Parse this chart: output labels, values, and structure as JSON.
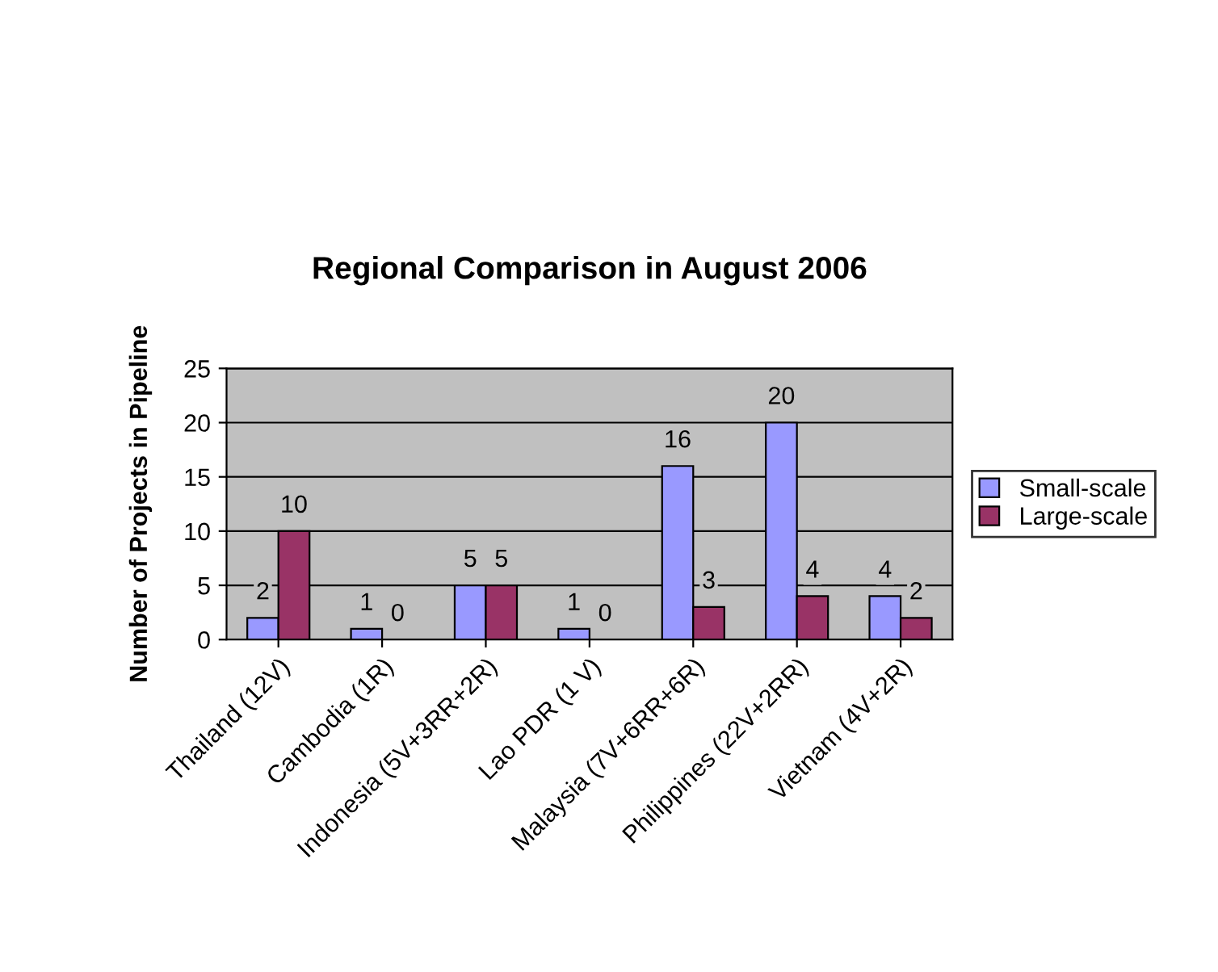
{
  "chart_data": {
    "type": "bar",
    "title": "Regional Comparison in August 2006",
    "ylabel": "Number of Projects in Pipeline",
    "categories": [
      "Thailand (12V)",
      "Cambodia (1R)",
      "Indonesia (5V+3RR+2R)",
      "Lao PDR (1 V)",
      "Malaysia (7V+6RR+6R)",
      "Philippines (22V+2RR)",
      "Vietnam (4V+2R)"
    ],
    "series": [
      {
        "name": "Small-scale",
        "color": "#9999ff",
        "values": [
          2,
          1,
          5,
          1,
          16,
          20,
          4
        ]
      },
      {
        "name": "Large-scale",
        "color": "#993366",
        "values": [
          10,
          0,
          5,
          0,
          3,
          4,
          2
        ]
      }
    ],
    "ylim": [
      0,
      25
    ],
    "yticks": [
      0,
      5,
      10,
      15,
      20,
      25
    ],
    "grid": "y",
    "legend": "right",
    "data_labels": true
  }
}
